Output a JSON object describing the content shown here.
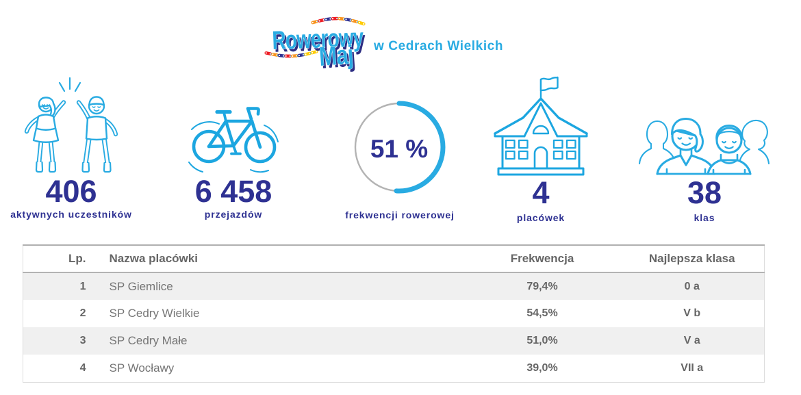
{
  "brand": {
    "logo_line1": "Rowerowy",
    "logo_line2": "Maj",
    "tagline": "w Cedrach Wielkich",
    "colors": {
      "light_blue": "#29abe2",
      "navy": "#2e3192",
      "chain_red": "#ed1c24",
      "chain_orange": "#f7941e",
      "chain_yellow": "#ffcb05",
      "ring_gray": "#b3b3b3"
    }
  },
  "stats": [
    {
      "icon": "kids-highfive-icon",
      "value": "406",
      "label": "aktywnych uczestników"
    },
    {
      "icon": "bicycle-icon",
      "value": "6 458",
      "label": "przejazdów"
    },
    {
      "icon": "progress-ring",
      "value": "51 %",
      "label": "frekwencji rowerowej",
      "percent": 51
    },
    {
      "icon": "school-icon",
      "value": "4",
      "label": "placówek"
    },
    {
      "icon": "people-group-icon",
      "value": "38",
      "label": "klas"
    }
  ],
  "chart_data": {
    "type": "table",
    "title": "Rowerowy Maj w Cedrach Wielkich",
    "columns": [
      "Lp.",
      "Nazwa placówki",
      "Frekwencja",
      "Najlepsza klasa"
    ],
    "rows": [
      {
        "lp": "1",
        "name": "SP Giemlice",
        "freq": "79,4%",
        "best": "0 a"
      },
      {
        "lp": "2",
        "name": "SP Cedry Wielkie",
        "freq": "54,5%",
        "best": "V b"
      },
      {
        "lp": "3",
        "name": "SP Cedry Małe",
        "freq": "51,0%",
        "best": "V a"
      },
      {
        "lp": "4",
        "name": "SP Wocławy",
        "freq": "39,0%",
        "best": "VII a"
      }
    ]
  },
  "table": {
    "headers": {
      "lp": "Lp.",
      "name": "Nazwa placówki",
      "freq": "Frekwencja",
      "best": "Najlepsza klasa"
    }
  }
}
